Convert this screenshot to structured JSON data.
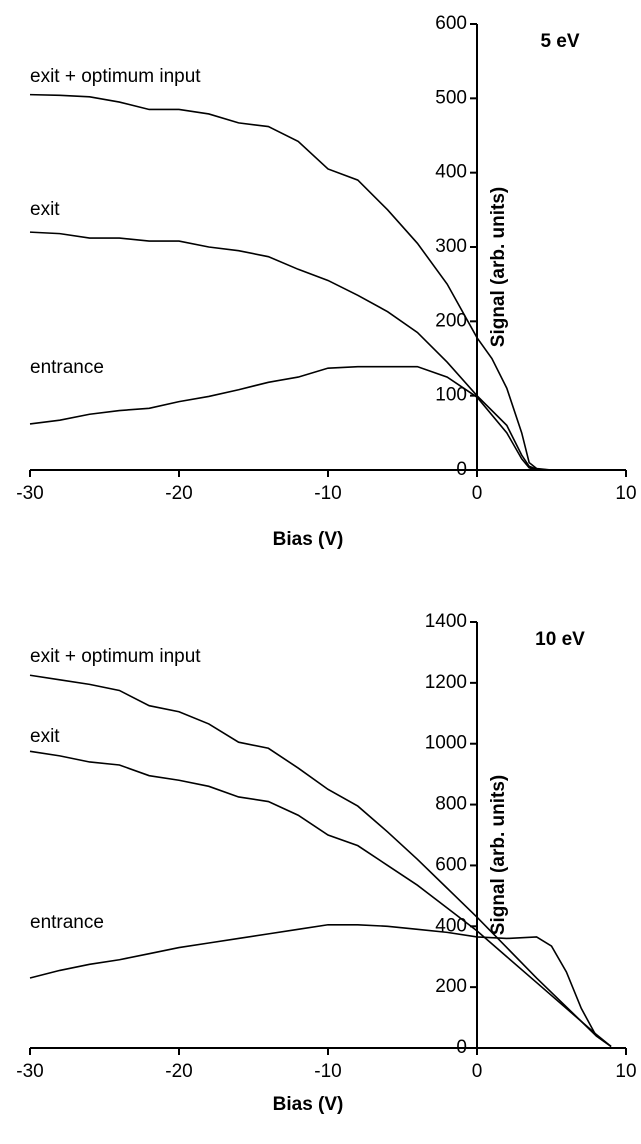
{
  "chart_data": [
    {
      "type": "line",
      "annotation": "5 eV",
      "xlabel": "Bias (V)",
      "ylabel": "Signal (arb. units)",
      "xlim": [
        -30,
        10
      ],
      "xticks": [
        -30,
        -20,
        -10,
        0,
        10
      ],
      "ylim": [
        0,
        600
      ],
      "yticks": [
        0,
        100,
        200,
        300,
        400,
        500,
        600
      ],
      "series": [
        {
          "name": "exit + optimum input",
          "color": "#000000",
          "x": [
            -30,
            -28,
            -26,
            -24,
            -22,
            -20,
            -18,
            -16,
            -14,
            -12,
            -10,
            -8,
            -6,
            -4,
            -2,
            0,
            1,
            2,
            3,
            3.5,
            4,
            5
          ],
          "values": [
            505,
            504,
            502,
            495,
            485,
            485,
            479,
            467,
            462,
            442,
            405,
            390,
            350,
            305,
            250,
            178,
            150,
            110,
            50,
            10,
            2,
            0
          ]
        },
        {
          "name": "exit",
          "color": "#000000",
          "x": [
            -30,
            -28,
            -26,
            -24,
            -22,
            -20,
            -18,
            -16,
            -14,
            -12,
            -10,
            -8,
            -6,
            -4,
            -2,
            0,
            2,
            3,
            3.5,
            4,
            5
          ],
          "values": [
            320,
            318,
            312,
            312,
            308,
            308,
            300,
            295,
            287,
            270,
            255,
            235,
            213,
            185,
            145,
            100,
            60,
            20,
            5,
            1,
            0
          ]
        },
        {
          "name": "entrance",
          "color": "#000000",
          "x": [
            -30,
            -28,
            -26,
            -24,
            -22,
            -20,
            -18,
            -16,
            -14,
            -12,
            -10,
            -8,
            -6,
            -4,
            -2,
            0,
            2,
            3,
            3.5,
            4,
            5
          ],
          "values": [
            62,
            67,
            75,
            80,
            83,
            92,
            99,
            108,
            118,
            125,
            137,
            139,
            139,
            139,
            125,
            98,
            50,
            15,
            3,
            0,
            0
          ]
        }
      ]
    },
    {
      "type": "line",
      "annotation": "10 eV",
      "xlabel": "Bias (V)",
      "ylabel": "Signal (arb. units)",
      "xlim": [
        -30,
        10
      ],
      "xticks": [
        -30,
        -20,
        -10,
        0,
        10
      ],
      "ylim": [
        0,
        1400
      ],
      "yticks": [
        0,
        200,
        400,
        600,
        800,
        1000,
        1200,
        1400
      ],
      "series": [
        {
          "name": "exit + optimum input",
          "color": "#000000",
          "x": [
            -30,
            -28,
            -26,
            -24,
            -22,
            -20,
            -18,
            -16,
            -14,
            -12,
            -10,
            -8,
            -6,
            -4,
            -2,
            0,
            2,
            4,
            6,
            8,
            9
          ],
          "values": [
            1225,
            1210,
            1195,
            1175,
            1125,
            1105,
            1065,
            1005,
            985,
            920,
            850,
            795,
            710,
            620,
            525,
            430,
            330,
            230,
            135,
            40,
            5
          ]
        },
        {
          "name": "exit",
          "color": "#000000",
          "x": [
            -30,
            -28,
            -26,
            -24,
            -22,
            -20,
            -18,
            -16,
            -14,
            -12,
            -10,
            -8,
            -6,
            -4,
            -2,
            0,
            2,
            4,
            6,
            8,
            9
          ],
          "values": [
            975,
            960,
            940,
            930,
            895,
            880,
            860,
            825,
            810,
            765,
            700,
            665,
            600,
            535,
            460,
            385,
            300,
            215,
            130,
            45,
            5
          ]
        },
        {
          "name": "entrance",
          "color": "#000000",
          "x": [
            -30,
            -28,
            -26,
            -24,
            -22,
            -20,
            -18,
            -16,
            -14,
            -12,
            -10,
            -8,
            -6,
            -4,
            -2,
            0,
            2,
            4,
            5,
            6,
            7,
            8,
            9
          ],
          "values": [
            230,
            255,
            275,
            290,
            310,
            330,
            345,
            360,
            375,
            390,
            405,
            405,
            400,
            390,
            380,
            365,
            360,
            365,
            335,
            250,
            130,
            40,
            5
          ]
        }
      ]
    }
  ]
}
